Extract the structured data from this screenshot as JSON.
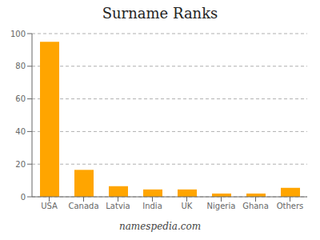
{
  "chart_data": {
    "type": "bar",
    "title": "Surname Ranks",
    "categories": [
      "USA",
      "Canada",
      "Latvia",
      "India",
      "UK",
      "Nigeria",
      "Ghana",
      "Others"
    ],
    "values": [
      95,
      16.5,
      6.5,
      4.5,
      4.5,
      2.0,
      2.0,
      5.5
    ],
    "color": "#FFA500",
    "ylim": [
      0,
      100
    ],
    "yticks": [
      0,
      20,
      40,
      60,
      80,
      100
    ],
    "grid": true,
    "annotations": [
      "namespedia.com"
    ]
  }
}
